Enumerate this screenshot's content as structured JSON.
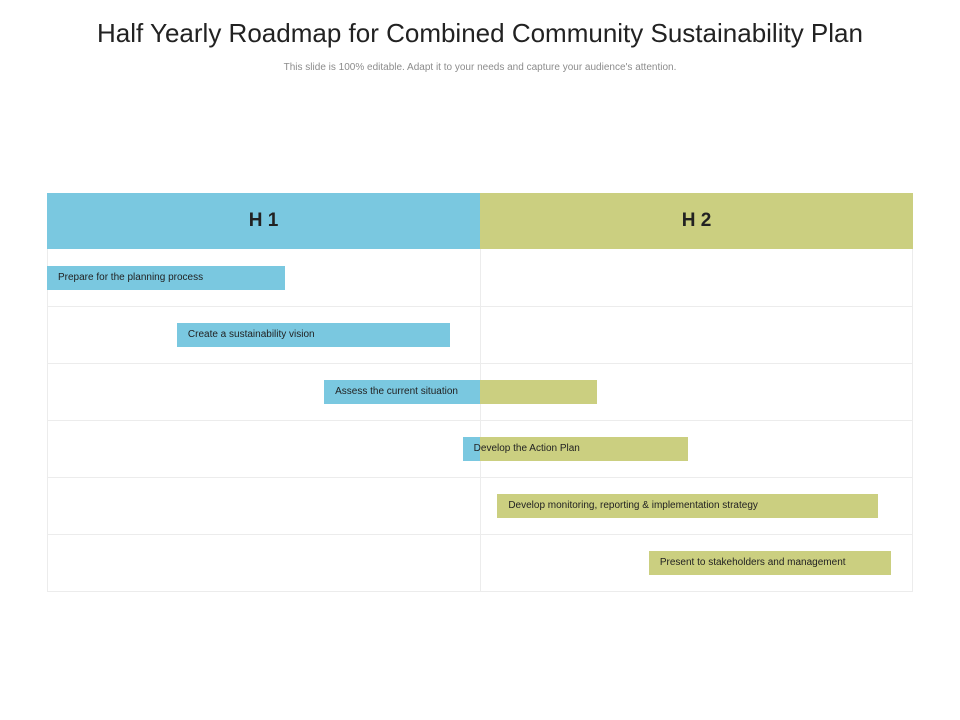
{
  "title": "Half Yearly Roadmap for Combined Community Sustainability Plan",
  "subtitle": "This slide is 100% editable. Adapt it to your needs and capture your audience's attention.",
  "colors": {
    "h1": "#7ac8e0",
    "h2": "#cbcf80",
    "grid": "#ececec"
  },
  "halves": [
    {
      "label": "H 1",
      "color": "#7ac8e0"
    },
    {
      "label": "H 2",
      "color": "#cbcf80"
    }
  ],
  "tasks": [
    {
      "label": "Prepare for the planning process",
      "start": 0.0,
      "end": 0.55
    },
    {
      "label": "Create a sustainability vision",
      "start": 0.3,
      "end": 0.93
    },
    {
      "label": "Assess the current situation",
      "start": 0.64,
      "end": 1.27
    },
    {
      "label": "Develop the Action Plan",
      "start": 0.96,
      "end": 1.48
    },
    {
      "label": "Develop monitoring, reporting & implementation  strategy",
      "start": 1.04,
      "end": 1.92
    },
    {
      "label": "Present to stakeholders and management",
      "start": 1.39,
      "end": 1.95
    }
  ]
}
